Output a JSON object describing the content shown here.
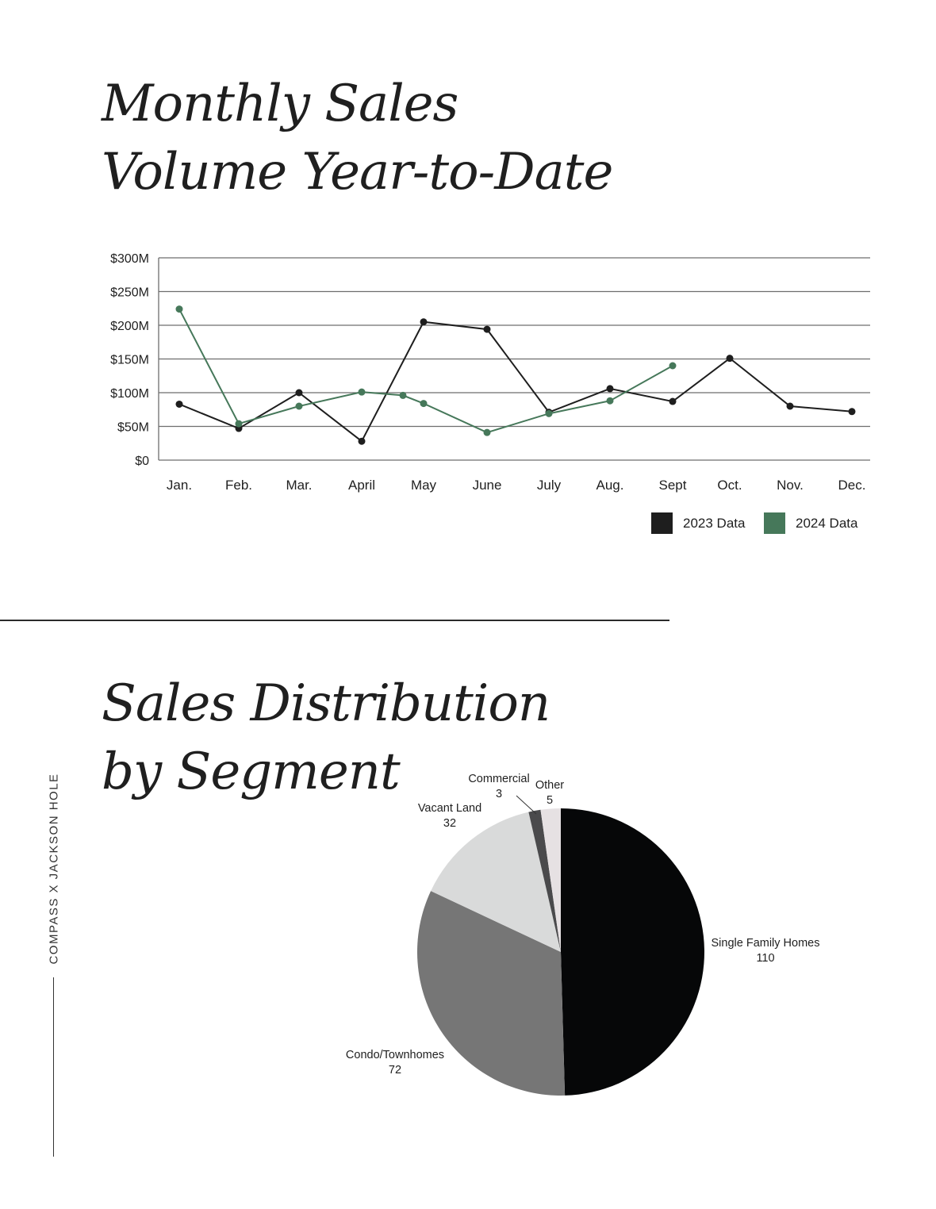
{
  "page": {
    "title1_line1": "Monthly Sales",
    "title1_line2": "Volume Year-to-Date",
    "title2_line1": "Sales Distribution",
    "title2_line2": "by Segment",
    "side_label": "COMPASS X JACKSON HOLE"
  },
  "chart_data": [
    {
      "type": "line",
      "categories": [
        "Jan.",
        "Feb.",
        "Mar.",
        "April",
        "May",
        "June",
        "July",
        "Aug.",
        "Sept",
        "Oct.",
        "Nov.",
        "Dec."
      ],
      "y_ticks": [
        {
          "value": 0,
          "label": "$0"
        },
        {
          "value": 50,
          "label": "$50M"
        },
        {
          "value": 100,
          "label": "$100M"
        },
        {
          "value": 150,
          "label": "$150M"
        },
        {
          "value": 200,
          "label": "$200M"
        },
        {
          "value": 250,
          "label": "$250M"
        },
        {
          "value": 300,
          "label": "$300M"
        }
      ],
      "ylim": [
        0,
        300
      ],
      "grid": true,
      "legend_position": "bottom-right",
      "series": [
        {
          "name": "2023 Data",
          "color": "#1e1e1e",
          "points": [
            {
              "x": "Jan.",
              "y": 83
            },
            {
              "x": "Feb.",
              "y": 47
            },
            {
              "x": "Mar.",
              "y": 100
            },
            {
              "x": "April",
              "y": 28
            },
            {
              "x": "May",
              "y": 205
            },
            {
              "x": "June",
              "y": 194
            },
            {
              "x": "July",
              "y": 71
            },
            {
              "x": "Aug.",
              "y": 106
            },
            {
              "x": "Sept",
              "y": 87
            },
            {
              "x": "Oct.",
              "y": 151
            },
            {
              "x": "Nov.",
              "y": 80
            },
            {
              "x": "Dec.",
              "y": 72
            }
          ]
        },
        {
          "name": "2024 Data",
          "color": "#46785a",
          "points": [
            {
              "x": "Jan.",
              "y": 224
            },
            {
              "x": "Feb.",
              "y": 54
            },
            {
              "x": "Mar.",
              "y": 80
            },
            {
              "x": "April",
              "y": 101
            },
            {
              "x": "April–May",
              "y": 96
            },
            {
              "x": "May",
              "y": 84
            },
            {
              "x": "June",
              "y": 41
            },
            {
              "x": "July",
              "y": 69
            },
            {
              "x": "Aug.",
              "y": 88
            },
            {
              "x": "Sept",
              "y": 140
            }
          ]
        }
      ]
    },
    {
      "type": "pie",
      "slices": [
        {
          "label": "Single Family Homes",
          "value": 110,
          "color": "#060708"
        },
        {
          "label": "Condo/Townhomes",
          "value": 72,
          "color": "#767676"
        },
        {
          "label": "Vacant Land",
          "value": 32,
          "color": "#d9dada"
        },
        {
          "label": "Commercial",
          "value": 3,
          "color": "#4a4a4c"
        },
        {
          "label": "Other",
          "value": 5,
          "color": "#e6e1e3"
        }
      ]
    }
  ]
}
